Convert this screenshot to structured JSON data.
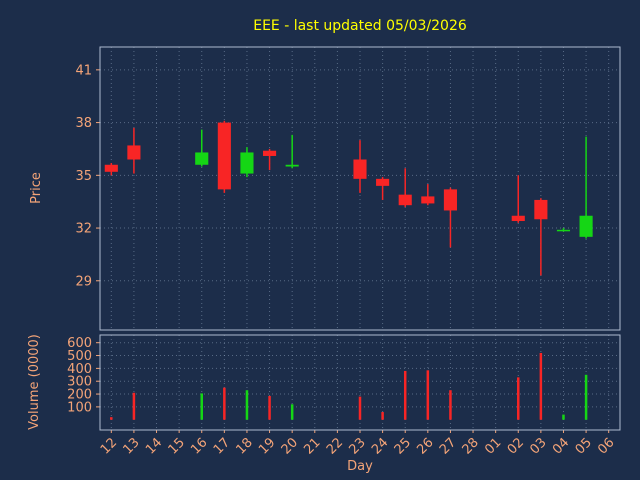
{
  "chart": {
    "title": "EEE - last updated 05/03/2026",
    "xlabel": "Day",
    "price_axis": {
      "label": "Price",
      "ticks": [
        29,
        32,
        35,
        38,
        41
      ],
      "ylim": [
        26.2,
        42.3
      ]
    },
    "volume_axis": {
      "label": "Volume (0000)",
      "ticks": [
        100,
        200,
        300,
        400,
        500,
        600
      ],
      "ylim": [
        -80,
        660
      ]
    },
    "colors": {
      "background": "#1c2d4a",
      "up": "#15d615",
      "down": "#f82525",
      "title": "#ffff00",
      "tick_label": "#f4a478",
      "grid": "#93a7c0",
      "axis_border": "#aebbd0"
    }
  },
  "chart_data": {
    "type": "candlestick",
    "subcharts": [
      "price_candlesticks",
      "volume_bars"
    ],
    "days": [
      "12",
      "13",
      "14",
      "15",
      "16",
      "17",
      "18",
      "19",
      "20",
      "21",
      "22",
      "23",
      "24",
      "25",
      "26",
      "27",
      "28",
      "01",
      "02",
      "03",
      "04",
      "05",
      "06"
    ],
    "candles": [
      {
        "open": 35.6,
        "high": 35.7,
        "low": 35.0,
        "close": 35.2,
        "volume": 20
      },
      {
        "open": 36.7,
        "high": 37.7,
        "low": 35.1,
        "close": 35.9,
        "volume": 210
      },
      null,
      null,
      {
        "open": 35.6,
        "high": 37.6,
        "low": 35.5,
        "close": 36.3,
        "volume": 205
      },
      {
        "open": 38.0,
        "high": 38.1,
        "low": 34.0,
        "close": 34.2,
        "volume": 250
      },
      {
        "open": 35.1,
        "high": 36.6,
        "low": 34.9,
        "close": 36.3,
        "volume": 230
      },
      {
        "open": 36.4,
        "high": 36.5,
        "low": 35.3,
        "close": 36.1,
        "volume": 185
      },
      {
        "open": 35.5,
        "high": 37.3,
        "low": 35.4,
        "close": 35.6,
        "volume": 120
      },
      null,
      null,
      {
        "open": 35.9,
        "high": 37.0,
        "low": 34.0,
        "close": 34.8,
        "volume": 180
      },
      {
        "open": 34.8,
        "high": 34.9,
        "low": 33.6,
        "close": 34.4,
        "volume": 60
      },
      {
        "open": 33.9,
        "high": 35.4,
        "low": 33.2,
        "close": 33.3,
        "volume": 380
      },
      {
        "open": 33.8,
        "high": 34.5,
        "low": 33.3,
        "close": 33.4,
        "volume": 385
      },
      {
        "open": 34.2,
        "high": 34.3,
        "low": 30.9,
        "close": 33.0,
        "volume": 230
      },
      null,
      null,
      {
        "open": 32.7,
        "high": 35.0,
        "low": 32.3,
        "close": 32.4,
        "volume": 330
      },
      {
        "open": 33.6,
        "high": 33.7,
        "low": 29.3,
        "close": 32.5,
        "volume": 520
      },
      {
        "open": 31.9,
        "high": 32.0,
        "low": 31.8,
        "close": 31.9,
        "volume": 40
      },
      {
        "open": 31.5,
        "high": 37.2,
        "low": 31.4,
        "close": 32.7,
        "volume": 350
      },
      null
    ],
    "legend": "none",
    "grid": "dotted"
  }
}
